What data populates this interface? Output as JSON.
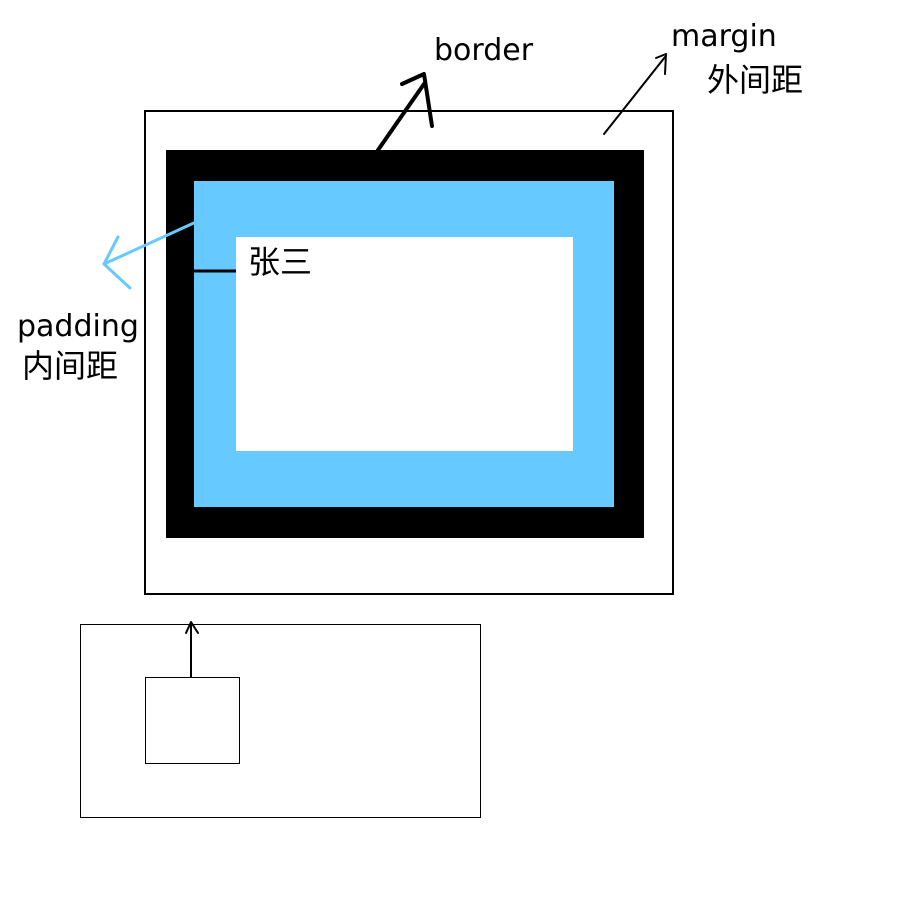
{
  "labels": {
    "border": "border",
    "margin": "margin",
    "margin_cn": "外间距",
    "padding": "padding",
    "padding_cn": "内间距",
    "content": "张三"
  },
  "colors": {
    "border": "#000000",
    "padding": "#66c9ff",
    "content": "#ffffff",
    "margin": "#ffffff",
    "outline": "#000000",
    "padding_arrow": "#66c9ff"
  },
  "icons": {
    "border_arrow": "arrow-up-right-icon",
    "margin_arrow": "arrow-up-right-icon",
    "padding_arrow": "arrow-left-down-icon",
    "bottom_arrow": "arrow-up-icon"
  }
}
